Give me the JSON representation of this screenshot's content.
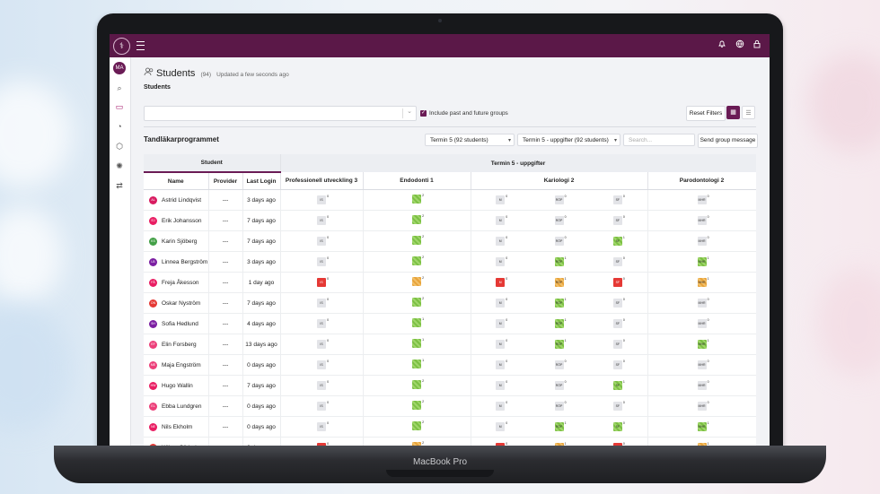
{
  "device_label": "MacBook Pro",
  "topbar": {
    "logo_glyph": "⚕",
    "menu_icon": "hamburger-icon",
    "icons": [
      "bell-icon",
      "globe-icon",
      "lock-icon"
    ]
  },
  "sidebar": {
    "avatar": "MA",
    "items": [
      "search-icon",
      "monitor-icon",
      "chart-icon",
      "globe-icon",
      "settings-icon",
      "shuffle-icon"
    ]
  },
  "page": {
    "title": "Students",
    "count": "(94)",
    "updated": "Updated a few seconds ago",
    "breadcrumb": "Students"
  },
  "filters": {
    "search_placeholder": "",
    "include_label": "Include past and future groups",
    "include_checked": true,
    "reset_label": "Reset Filters"
  },
  "program": {
    "name": "Tandläkarprogrammet",
    "term_select": "Termin 5 (92 students)",
    "task_select": "Termin 5 - uppgifter (92 students)",
    "search_placeholder": "Search...",
    "group_message": "Send group message"
  },
  "table": {
    "group_student": "Student",
    "group_tasks": "Termin 5 - uppgifter",
    "col_name": "Name",
    "col_provider": "Provider",
    "col_last_login": "Last Login",
    "col_course1": "Professionell utveckling 3",
    "col_course2": "Endodonti 1",
    "col_course3": "Kariologi 2",
    "col_course4": "Parodontologi 2",
    "rows": [
      {
        "name": "Astrid Lindqvist",
        "initials": "AL",
        "color": "#d81b60",
        "provider": "---",
        "login": "3 days ago",
        "is": [
          "gray",
          "0"
        ],
        "endo": [
          "green",
          "2"
        ],
        "m": [
          "gray",
          "0"
        ],
        "rop": [
          "gray",
          "0"
        ],
        "sf": [
          "gray",
          "0"
        ],
        "mhr": [
          "gray",
          "0"
        ]
      },
      {
        "name": "Erik Johansson",
        "initials": "EJ",
        "color": "#e91e63",
        "provider": "---",
        "login": "7 days ago",
        "is": [
          "gray",
          "0"
        ],
        "endo": [
          "green",
          "2"
        ],
        "m": [
          "gray",
          "0"
        ],
        "rop": [
          "gray",
          "0"
        ],
        "sf": [
          "gray",
          "0"
        ],
        "mhr": [
          "gray",
          "0"
        ]
      },
      {
        "name": "Karin Sjöberg",
        "initials": "KS",
        "color": "#43a047",
        "provider": "---",
        "login": "7 days ago",
        "is": [
          "gray",
          "0"
        ],
        "endo": [
          "green",
          "2"
        ],
        "m": [
          "gray",
          "0"
        ],
        "rop": [
          "gray",
          "0"
        ],
        "sf": [
          "green",
          "1"
        ],
        "mhr": [
          "gray",
          "0"
        ]
      },
      {
        "name": "Linnea Bergström",
        "initials": "LB",
        "color": "#7b1fa2",
        "provider": "---",
        "login": "3 days ago",
        "is": [
          "gray",
          "0"
        ],
        "endo": [
          "green",
          "2"
        ],
        "m": [
          "gray",
          "0"
        ],
        "rop": [
          "green",
          "1"
        ],
        "sf": [
          "gray",
          "0"
        ],
        "mhr": [
          "green",
          "1"
        ]
      },
      {
        "name": "Freja Åkesson",
        "initials": "FÅ",
        "color": "#e91e63",
        "provider": "---",
        "login": "1 day ago",
        "is": [
          "red",
          "0"
        ],
        "endo": [
          "orange",
          "2"
        ],
        "m": [
          "red",
          "0"
        ],
        "rop": [
          "orange",
          "1"
        ],
        "sf": [
          "red",
          "0"
        ],
        "mhr": [
          "orange",
          "1"
        ]
      },
      {
        "name": "Oskar Nyström",
        "initials": "ON",
        "color": "#e53935",
        "provider": "---",
        "login": "7 days ago",
        "is": [
          "gray",
          "0"
        ],
        "endo": [
          "green",
          "2"
        ],
        "m": [
          "gray",
          "0"
        ],
        "rop": [
          "green",
          "1"
        ],
        "sf": [
          "gray",
          "0"
        ],
        "mhr": [
          "gray",
          "0"
        ]
      },
      {
        "name": "Sofia Hedlund",
        "initials": "SH",
        "color": "#7b1fa2",
        "provider": "---",
        "login": "4 days ago",
        "is": [
          "gray",
          "0"
        ],
        "endo": [
          "green",
          "1"
        ],
        "m": [
          "gray",
          "0"
        ],
        "rop": [
          "green",
          "1"
        ],
        "sf": [
          "gray",
          "0"
        ],
        "mhr": [
          "gray",
          "0"
        ]
      },
      {
        "name": "Elin Forsberg",
        "initials": "EF",
        "color": "#ec407a",
        "provider": "---",
        "login": "13 days ago",
        "is": [
          "gray",
          "0"
        ],
        "endo": [
          "green",
          "1"
        ],
        "m": [
          "gray",
          "0"
        ],
        "rop": [
          "green",
          "1"
        ],
        "sf": [
          "gray",
          "0"
        ],
        "mhr": [
          "green",
          "1"
        ]
      },
      {
        "name": "Maja Engström",
        "initials": "ME",
        "color": "#ec407a",
        "provider": "---",
        "login": "0 days ago",
        "is": [
          "gray",
          "0"
        ],
        "endo": [
          "green",
          "1"
        ],
        "m": [
          "gray",
          "0"
        ],
        "rop": [
          "gray",
          "0"
        ],
        "sf": [
          "gray",
          "0"
        ],
        "mhr": [
          "gray",
          "0"
        ]
      },
      {
        "name": "Hugo Wallin",
        "initials": "HW",
        "color": "#e91e63",
        "provider": "---",
        "login": "7 days ago",
        "is": [
          "gray",
          "0"
        ],
        "endo": [
          "green",
          "2"
        ],
        "m": [
          "gray",
          "0"
        ],
        "rop": [
          "gray",
          "0"
        ],
        "sf": [
          "green",
          "1"
        ],
        "mhr": [
          "gray",
          "0"
        ]
      },
      {
        "name": "Ebba Lundgren",
        "initials": "EL",
        "color": "#ec407a",
        "provider": "---",
        "login": "0 days ago",
        "is": [
          "gray",
          "0"
        ],
        "endo": [
          "green",
          "2"
        ],
        "m": [
          "gray",
          "0"
        ],
        "rop": [
          "gray",
          "0"
        ],
        "sf": [
          "gray",
          "0"
        ],
        "mhr": [
          "gray",
          "0"
        ]
      },
      {
        "name": "Nils Ekholm",
        "initials": "NE",
        "color": "#e91e63",
        "provider": "---",
        "login": "0 days ago",
        "is": [
          "gray",
          "0"
        ],
        "endo": [
          "green",
          "2"
        ],
        "m": [
          "gray",
          "0"
        ],
        "rop": [
          "green",
          "1"
        ],
        "sf": [
          "green",
          "0"
        ],
        "mhr": [
          "green",
          "1"
        ]
      },
      {
        "name": "Wilma Söderberg",
        "initials": "WS",
        "color": "#e53935",
        "provider": "---",
        "login": "0 days ago",
        "is": [
          "red",
          "0"
        ],
        "endo": [
          "orange",
          "2"
        ],
        "m": [
          "red",
          "0"
        ],
        "rop": [
          "orange",
          "1"
        ],
        "sf": [
          "red",
          "0"
        ],
        "mhr": [
          "orange",
          "1"
        ]
      }
    ],
    "cell_labels": {
      "is": "IS",
      "m": "M",
      "rop": "RÖP",
      "sf": "SF",
      "mhr": "MHR"
    }
  },
  "colors": {
    "brand": "#5b1848",
    "green": "#7bc043",
    "orange": "#e8a33a",
    "red": "#e53935"
  }
}
